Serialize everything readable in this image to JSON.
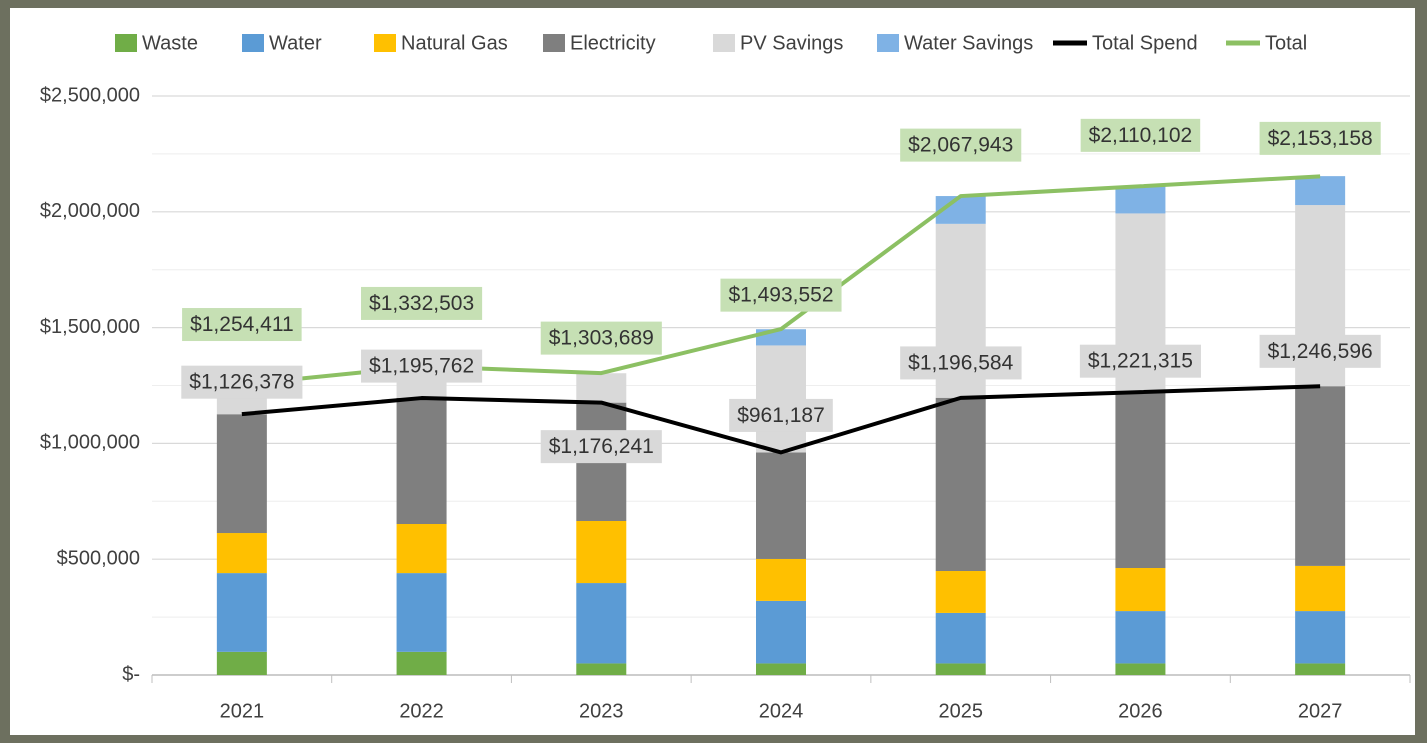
{
  "chart_data": {
    "type": "bar",
    "stacked": true,
    "categories": [
      "2021",
      "2022",
      "2023",
      "2024",
      "2025",
      "2026",
      "2027"
    ],
    "series": [
      {
        "name": "Waste",
        "color": "#70ad47",
        "values": [
          100000,
          100000,
          50000,
          50000,
          50000,
          50000,
          50000
        ]
      },
      {
        "name": "Water",
        "color": "#5b9bd5",
        "values": [
          340000,
          340000,
          347000,
          270000,
          218000,
          226000,
          226000
        ]
      },
      {
        "name": "Natural Gas",
        "color": "#ffc000",
        "values": [
          173000,
          212000,
          268000,
          181000,
          181000,
          186000,
          195000
        ]
      },
      {
        "name": "Electricity",
        "color": "#7f7f7f",
        "values": [
          513000,
          544000,
          511000,
          460000,
          748000,
          759000,
          776000
        ]
      },
      {
        "name": "PV Savings",
        "color": "#d9d9d9",
        "values": [
          128000,
          137000,
          127000,
          462000,
          751000,
          772000,
          782000
        ]
      },
      {
        "name": "Water Savings",
        "color": "#7fb2e5",
        "values": [
          0,
          0,
          0,
          70000,
          120000,
          117000,
          125000
        ]
      },
      {
        "name": "Total Spend",
        "color": "#000000",
        "type": "line",
        "values": [
          1126378,
          1195762,
          1176241,
          961187,
          1196584,
          1221315,
          1246596
        ],
        "value_labels": [
          "$1,126,378",
          "$1,195,762",
          "$1,176,241",
          "$961,187",
          "$1,196,584",
          "$1,221,315",
          "$1,246,596"
        ],
        "label_color": "#d9d9d9"
      },
      {
        "name": "Total",
        "color": "#8cc063",
        "type": "line",
        "values": [
          1254411,
          1332503,
          1303689,
          1493552,
          2067943,
          2110102,
          2153158
        ],
        "value_labels": [
          "$1,254,411",
          "$1,332,503",
          "$1,303,689",
          "$1,493,552",
          "$2,067,943",
          "$2,110,102",
          "$2,153,158"
        ],
        "label_color": "#c6e0b4"
      }
    ],
    "ylim": [
      0,
      2500000
    ],
    "yticks": [
      {
        "value": 0,
        "label": "$-"
      },
      {
        "value": 500000,
        "label": "$500,000"
      },
      {
        "value": 1000000,
        "label": "$1,000,000"
      },
      {
        "value": 1500000,
        "label": "$1,500,000"
      },
      {
        "value": 2000000,
        "label": "$2,000,000"
      },
      {
        "value": 2500000,
        "label": "$2,500,000"
      }
    ],
    "grid": true,
    "legend": "top"
  }
}
